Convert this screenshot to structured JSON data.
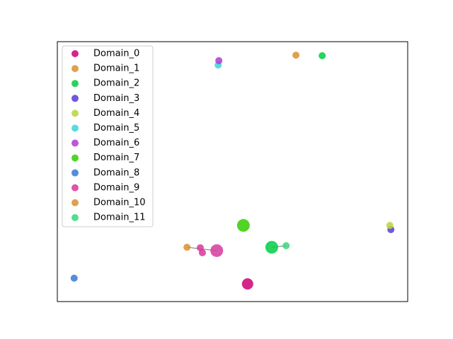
{
  "chart_data": {
    "type": "scatter",
    "xlim": [
      0,
      100
    ],
    "ylim": [
      0,
      100
    ],
    "legend": "upper left",
    "series": [
      {
        "name": "Domain_0",
        "color": "#cc0077",
        "x": [
          54.3
        ],
        "values": [
          6.8
        ],
        "sizes": [
          8
        ]
      },
      {
        "name": "Domain_1",
        "color": "#d9902f",
        "x": [
          68.1
        ],
        "values": [
          94.8
        ],
        "sizes": [
          5
        ]
      },
      {
        "name": "Domain_2",
        "color": "#00cc44",
        "x": [
          75.6,
          61.2
        ],
        "values": [
          94.6,
          20.9
        ],
        "sizes": [
          5,
          9
        ]
      },
      {
        "name": "Domain_3",
        "color": "#5a3ad6",
        "x": [
          95.2
        ],
        "values": [
          27.7
        ],
        "sizes": [
          5
        ]
      },
      {
        "name": "Domain_4",
        "color": "#b8d63a",
        "x": [
          94.9
        ],
        "values": [
          29.3
        ],
        "sizes": [
          5
        ]
      },
      {
        "name": "Domain_5",
        "color": "#3ad6d6",
        "x": [
          45.9
        ],
        "values": [
          91.0
        ],
        "sizes": [
          5
        ]
      },
      {
        "name": "Domain_6",
        "color": "#b03ad6",
        "x": [
          46.1
        ],
        "values": [
          92.7
        ],
        "sizes": [
          5
        ]
      },
      {
        "name": "Domain_7",
        "color": "#33cc00",
        "x": [
          53.1
        ],
        "values": [
          29.3
        ],
        "sizes": [
          9
        ]
      },
      {
        "name": "Domain_8",
        "color": "#3a78d6",
        "x": [
          4.8
        ],
        "values": [
          9.0
        ],
        "sizes": [
          5
        ]
      },
      {
        "name": "Domain_9",
        "color": "#d63a9c",
        "x": [
          40.8,
          41.4,
          45.5
        ],
        "values": [
          20.7,
          18.8,
          19.6
        ],
        "sizes": [
          5,
          5,
          9
        ]
      },
      {
        "name": "Domain_10",
        "color": "#d9902f",
        "x": [
          37.0
        ],
        "values": [
          20.9
        ],
        "sizes": [
          5
        ]
      },
      {
        "name": "Domain_11",
        "color": "#3ad67a",
        "x": [
          65.3
        ],
        "values": [
          21.5
        ],
        "sizes": [
          5
        ]
      }
    ]
  }
}
